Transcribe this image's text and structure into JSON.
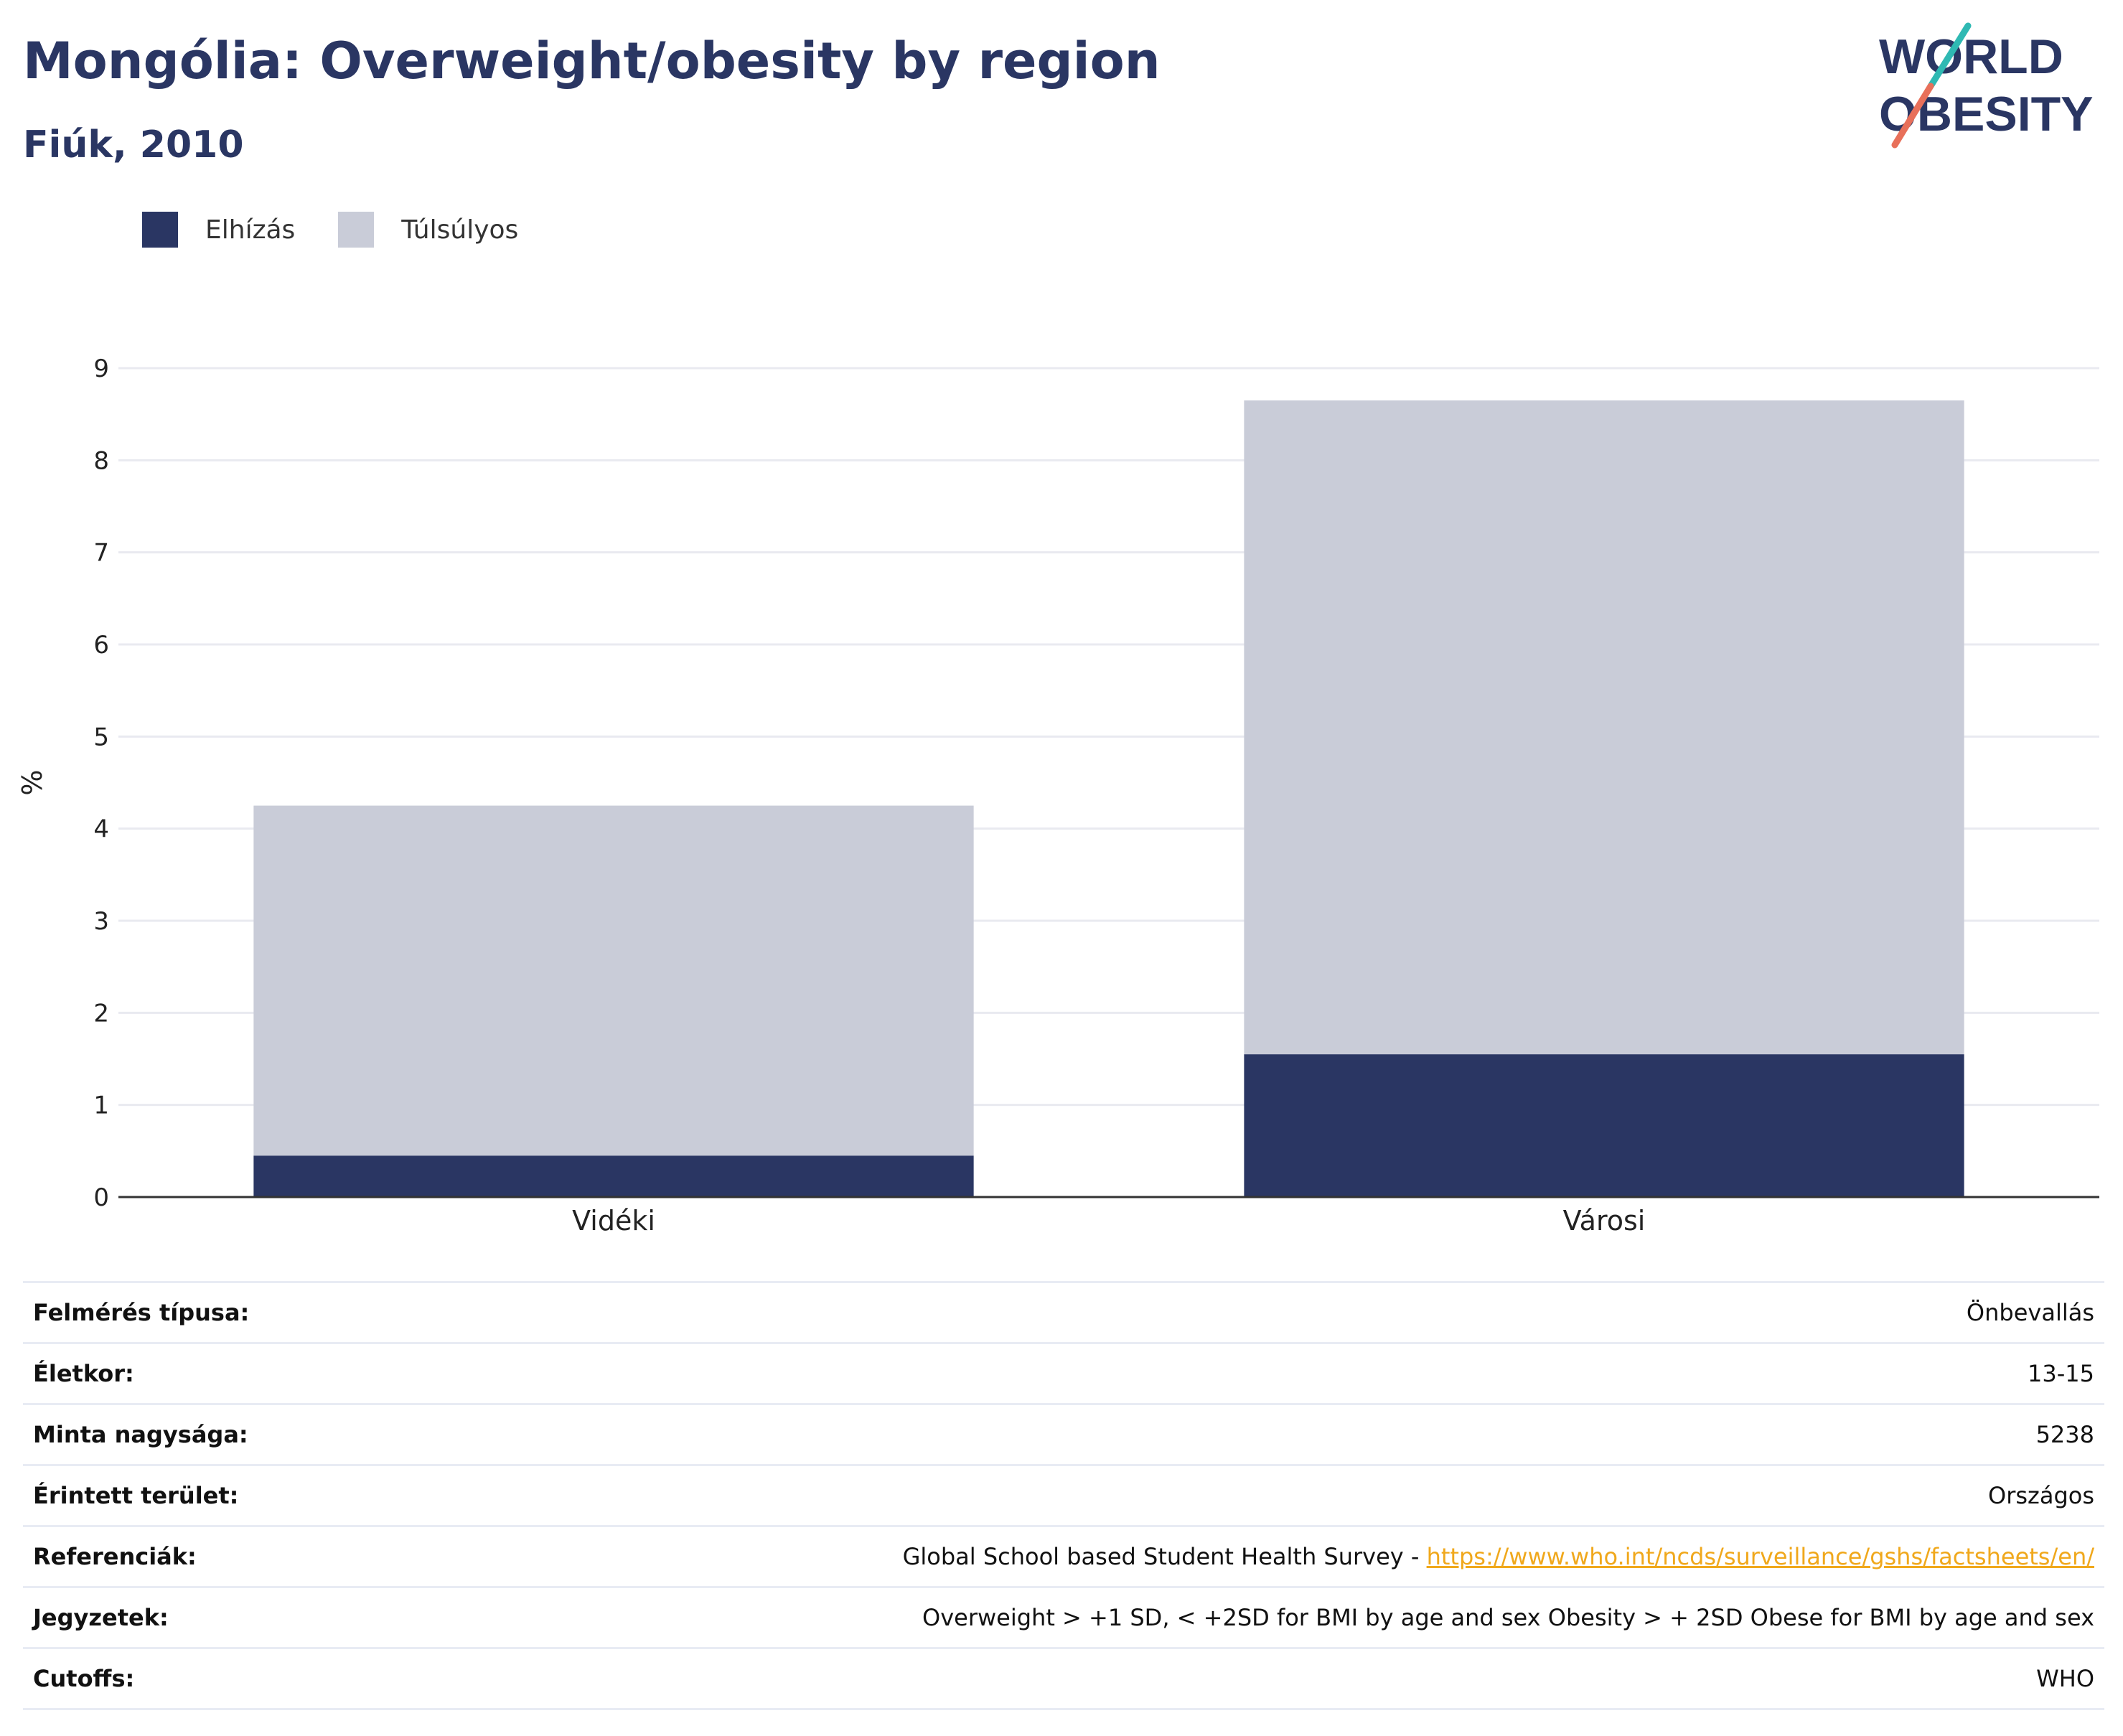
{
  "header": {
    "title": "Mongólia: Overweight/obesity by region",
    "subtitle": "Fiúk, 2010"
  },
  "logo": {
    "line1": "WORLD",
    "line2": "OBESITY"
  },
  "legend": [
    {
      "label": "Elhízás",
      "color": "#2a3663"
    },
    {
      "label": "Túlsúlyos",
      "color": "#c9ccd8"
    }
  ],
  "chart_data": {
    "type": "bar",
    "stacked": true,
    "categories": [
      "Vidéki",
      "Városi"
    ],
    "series": [
      {
        "name": "Elhízás",
        "values": [
          0.45,
          1.55
        ],
        "color": "#2a3663"
      },
      {
        "name": "Túlsúlyos",
        "values": [
          3.8,
          7.1
        ],
        "color": "#c9ccd8"
      }
    ],
    "ylabel": "%",
    "ylim": [
      0,
      9
    ],
    "yticks": [
      0,
      1,
      2,
      3,
      4,
      5,
      6,
      7,
      8,
      9
    ],
    "grid": true,
    "legend_position": "top-left"
  },
  "info": [
    {
      "key": "Felmérés típusa:",
      "value": "Önbevallás"
    },
    {
      "key": "Életkor:",
      "value": "13-15"
    },
    {
      "key": "Minta nagysága:",
      "value": "5238"
    },
    {
      "key": "Érintett terület:",
      "value": "Országos"
    },
    {
      "key": "Referenciák:",
      "value": "Global School based Student Health Survey - ",
      "link": "https://www.who.int/ncds/surveillance/gshs/factsheets/en/"
    },
    {
      "key": "Jegyzetek:",
      "value": "Overweight > +1 SD, < +2SD for BMI by age and sex Obesity > + 2SD Obese for BMI by age and sex"
    },
    {
      "key": "Cutoffs:",
      "value": "WHO"
    }
  ]
}
